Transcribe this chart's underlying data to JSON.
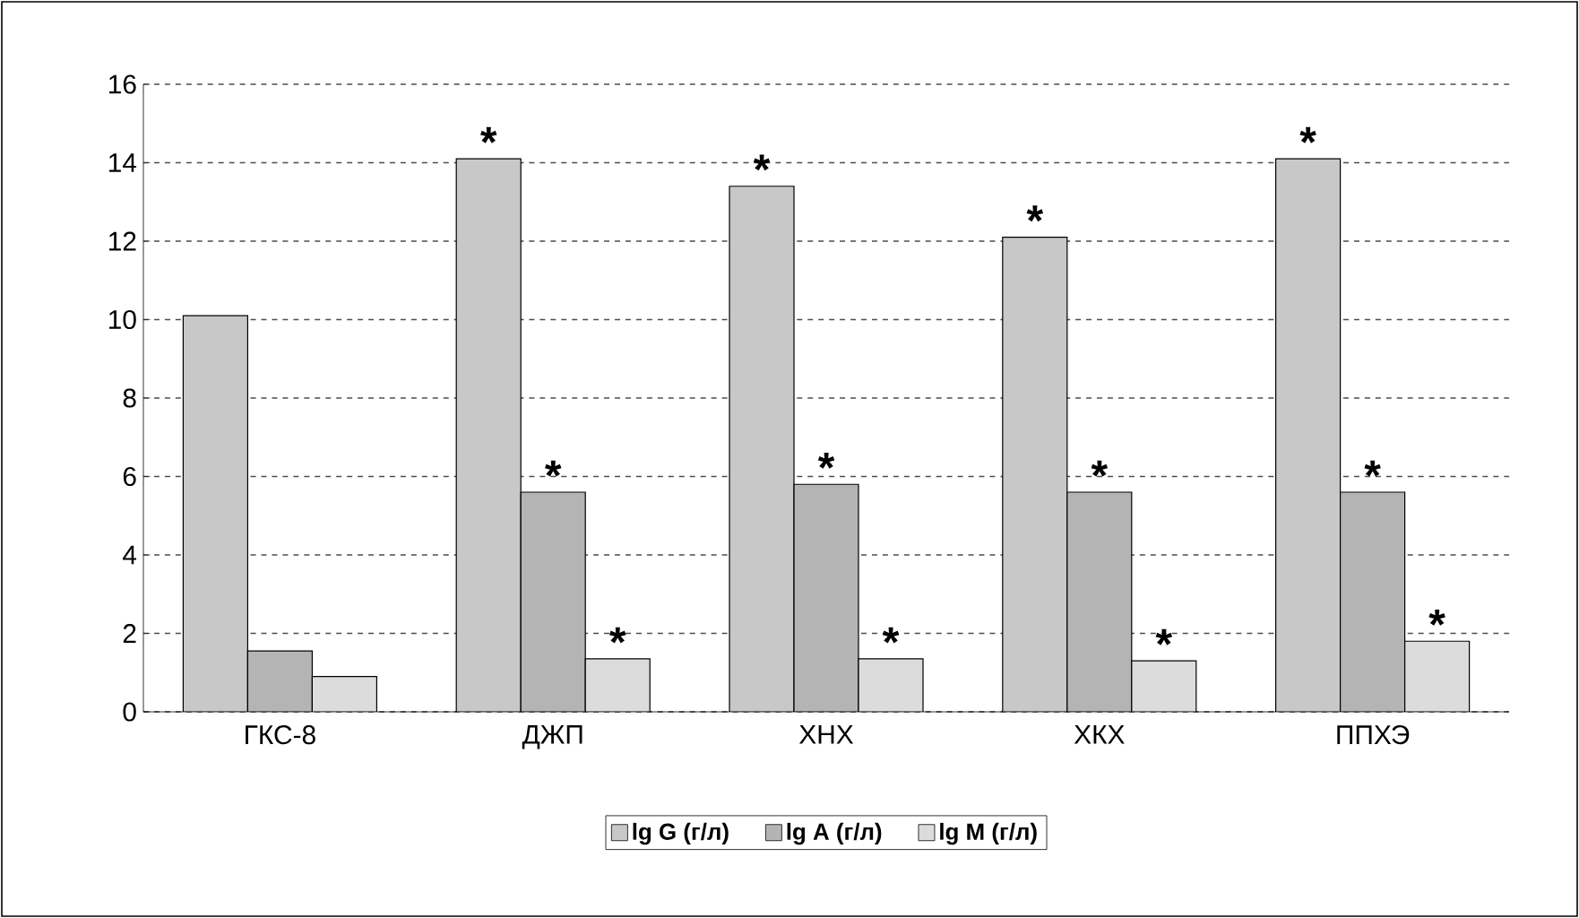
{
  "chart_data": {
    "type": "bar",
    "categories": [
      "ГКС-8",
      "ДЖП",
      "ХНХ",
      "ХКХ",
      "ППХЭ"
    ],
    "series": [
      {
        "name": "lg G (г/л)",
        "color": "#c8c8c8",
        "values": [
          10.1,
          14.1,
          13.4,
          12.1,
          14.1
        ],
        "value_labels": [
          null,
          "*",
          "*",
          "*",
          "*"
        ]
      },
      {
        "name": "lg A (г/л)",
        "color": "#b4b4b4",
        "values": [
          1.55,
          5.6,
          5.8,
          5.6,
          5.6
        ],
        "value_labels": [
          null,
          "*",
          "*",
          "*",
          "*"
        ]
      },
      {
        "name": "lg M (г/л)",
        "color": "#dcdcdc",
        "values": [
          0.9,
          1.35,
          1.35,
          1.3,
          1.8
        ],
        "value_labels": [
          null,
          "*",
          "*",
          "*",
          "*"
        ]
      }
    ],
    "ylim": [
      0,
      16
    ],
    "yticks": [
      0,
      2,
      4,
      6,
      8,
      10,
      12,
      14,
      16
    ],
    "grid": "y",
    "legend": "bottom"
  }
}
